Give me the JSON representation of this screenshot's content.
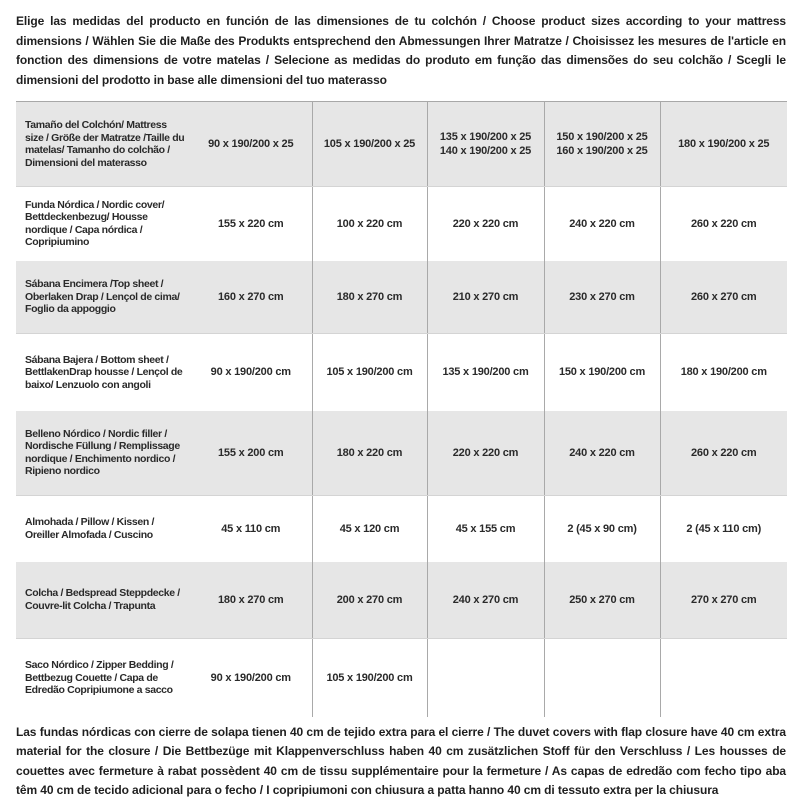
{
  "intro": "Elige las medidas del producto en función de las dimensiones de tu colchón / Choose product sizes according to your mattress dimensions / Wählen Sie die Maße des Produkts entsprechend den Abmessungen Ihrer Matratze / Choisissez les mesures de l'article en fonction des dimensions de votre matelas / Selecione as medidas do produto em função das dimensões do seu colchão / Scegli le dimensioni del prodotto in base alle dimensioni del tuo materasso",
  "footnote": "Las fundas nórdicas con cierre de solapa tienen 40 cm de tejido extra para el cierre  / The duvet covers with flap closure have 40 cm extra material for the closure / Die Bettbezüge mit Klappenverschluss haben 40 cm zusätzlichen Stoff für den Verschluss / Les housses de couettes avec fermeture à rabat possèdent 40 cm de tissu supplémentaire pour la fermeture / As capas de edredão com fecho tipo aba têm 40 cm de tecido adicional para o fecho / I copripiumoni con chiusura a patta hanno 40 cm di tessuto extra per la chiusura",
  "colors": {
    "row_stripe": "#e6e6e6",
    "column_separator": "#a9a9a9",
    "text": "#2a2a2a"
  },
  "table": {
    "rows": [
      {
        "label": "Tamaño del Colchón/ Mattress size / Größe der Matratze /Taille du matelas/ Tamanho do colchão / Dimensioni del materasso",
        "values": [
          "90 x 190/200 x 25",
          "105 x 190/200 x 25",
          "135 x 190/200 x 25\n140 x 190/200 x 25",
          "150 x 190/200 x 25\n160 x 190/200 x 25",
          "180 x 190/200 x 25"
        ]
      },
      {
        "label": "Funda Nórdica /  Nordic cover/ Bettdeckenbezug/ Housse nordique  / Capa nórdica / Copripiumino",
        "values": [
          "155 x 220 cm",
          "100 x 220 cm",
          "220 x 220 cm",
          "240 x 220 cm",
          "260 x 220 cm"
        ]
      },
      {
        "label": "Sábana Encimera /Top sheet / Oberlaken Drap / Lençol de cima/ Foglio da appoggio",
        "values": [
          "160 x 270 cm",
          "180 x 270 cm",
          "210 x 270 cm",
          "230 x 270 cm",
          "260 x 270 cm"
        ]
      },
      {
        "label": "Sábana Bajera / Bottom sheet / BettlakenDrap housse / Lençol de baixo/ Lenzuolo con angoli",
        "values": [
          "90 x 190/200 cm",
          "105 x 190/200 cm",
          "135 x 190/200 cm",
          "150 x 190/200 cm",
          "180 x 190/200 cm"
        ]
      },
      {
        "label": "Belleno Nórdico / Nordic filler / Nordische Füllung / Remplissage nordique / Enchimento nordico / Ripieno nordico",
        "values": [
          "155 x 200 cm",
          "180 x 220 cm",
          "220 x 220 cm",
          "240 x 220 cm",
          "260 x 220 cm"
        ]
      },
      {
        "label": "Almohada  / Pillow / Kissen / Oreiller Almofada / Cuscino",
        "values": [
          "45 x 110 cm",
          "45 x 120 cm",
          "45 x 155 cm",
          "2 (45 x 90 cm)",
          "2 (45 x 110 cm)"
        ]
      },
      {
        "label": "Colcha / Bedspread Steppdecke / Couvre-lit Colcha / Trapunta",
        "values": [
          "180 x 270 cm",
          "200 x 270 cm",
          "240 x 270 cm",
          "250 x 270 cm",
          "270 x 270 cm"
        ]
      },
      {
        "label": "Saco Nórdico / Zipper Bedding / Bettbezug Couette  / Capa de Edredão Copripiumone a sacco",
        "values": [
          "90 x 190/200 cm",
          "105 x 190/200 cm",
          "",
          "",
          ""
        ]
      }
    ]
  }
}
